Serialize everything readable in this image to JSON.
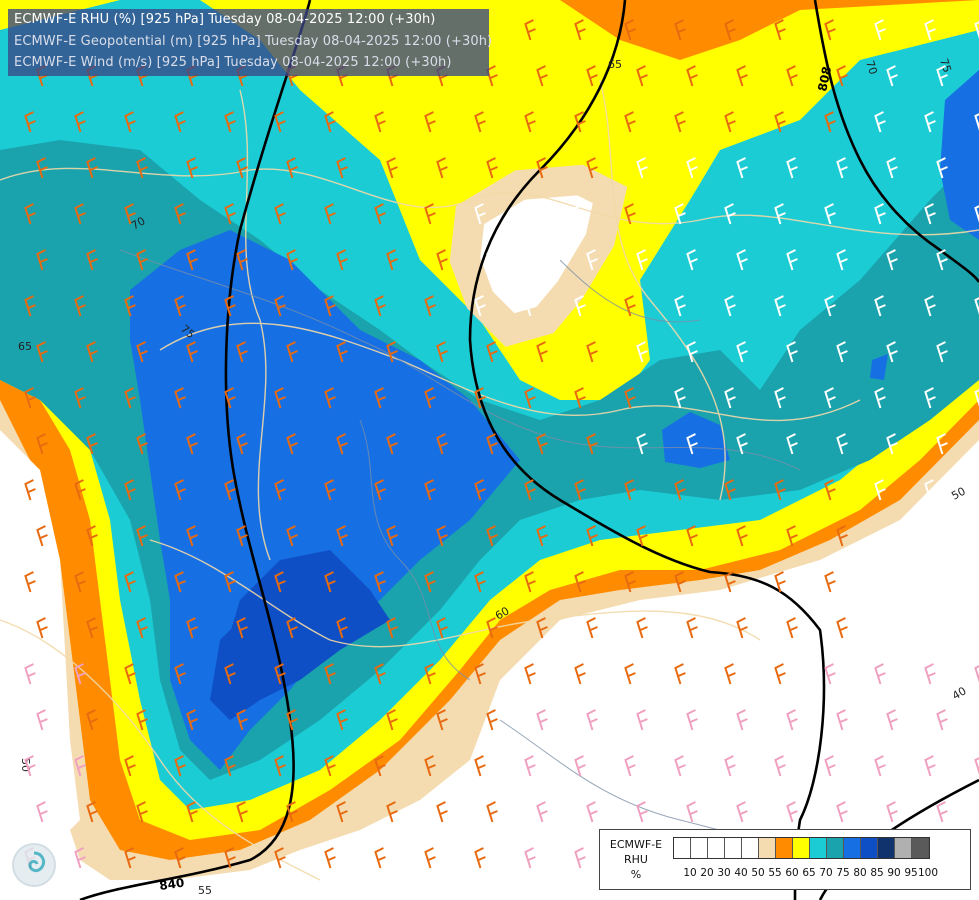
{
  "titles": [
    "ECMWF-E RHU (%) [925 hPa] Tuesday 08-04-2025 12:00 (+30h)",
    "ECMWF-E Geopotential (m) [925 hPa] Tuesday 08-04-2025 12:00 (+30h)",
    "ECMWF-E Wind (m/s) [925 hPa] Tuesday 08-04-2025 12:00 (+30h)"
  ],
  "legend": {
    "title_lines": [
      "ECMWF-E",
      "RHU",
      "%"
    ],
    "colors": [
      "#ffffff",
      "#ffffff",
      "#ffffff",
      "#ffffff",
      "#ffffff",
      "#f5dcb0",
      "#ff8c00",
      "#ffff00",
      "#1cccd5",
      "#1aa3ad",
      "#1770e3",
      "#0f4fc6",
      "#10336e",
      "#b0b0b0",
      "#5a5a5a"
    ],
    "ticks": [
      "10",
      "20",
      "30",
      "40",
      "50",
      "55",
      "60",
      "65",
      "70",
      "75",
      "80",
      "85",
      "90",
      "95",
      "100"
    ]
  },
  "contour_labels": {
    "rhu": [
      "70",
      "75",
      "65",
      "75",
      "70",
      "65",
      "50",
      "40",
      "50",
      "60",
      "55"
    ],
    "geopotential": [
      "808",
      "840"
    ]
  },
  "colors": {
    "geopotential_line": "#000000",
    "borders": "#f5dcb0",
    "rivers": "#7a8fa8",
    "wind_warm": "#e86a10",
    "wind_cool": "#ffffff",
    "wind_pink": "#f0a0c0"
  }
}
